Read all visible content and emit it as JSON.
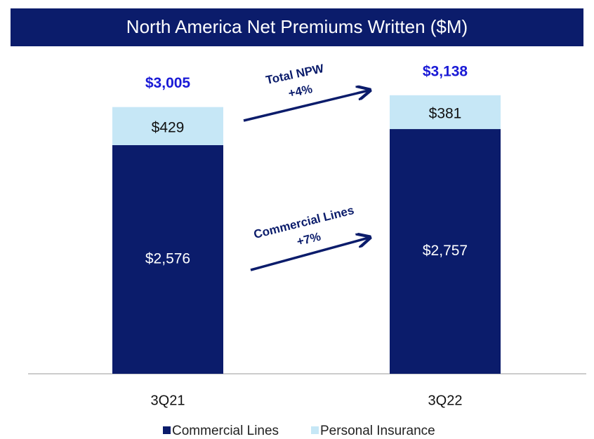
{
  "chart_data": {
    "type": "stacked_bar",
    "title": "North America Net Premiums Written ($M)",
    "categories": [
      "3Q21",
      "3Q22"
    ],
    "series": [
      {
        "name": "Commercial Lines",
        "color": "#0b1c6b",
        "values": [
          2576,
          2757
        ],
        "value_labels": [
          "$2,576",
          "$2,757"
        ]
      },
      {
        "name": "Personal Insurance",
        "color": "#c6e7f6",
        "values": [
          429,
          381
        ],
        "value_labels": [
          "$429",
          "$381"
        ]
      }
    ],
    "totals": [
      3005,
      3138
    ],
    "total_labels": [
      "$3,005",
      "$3,138"
    ],
    "annotations": [
      {
        "title": "Total NPW",
        "change": "+4%"
      },
      {
        "title": "Commercial Lines",
        "change": "+7%"
      }
    ],
    "ylim": [
      0,
      3500
    ],
    "legend": "bottom"
  }
}
